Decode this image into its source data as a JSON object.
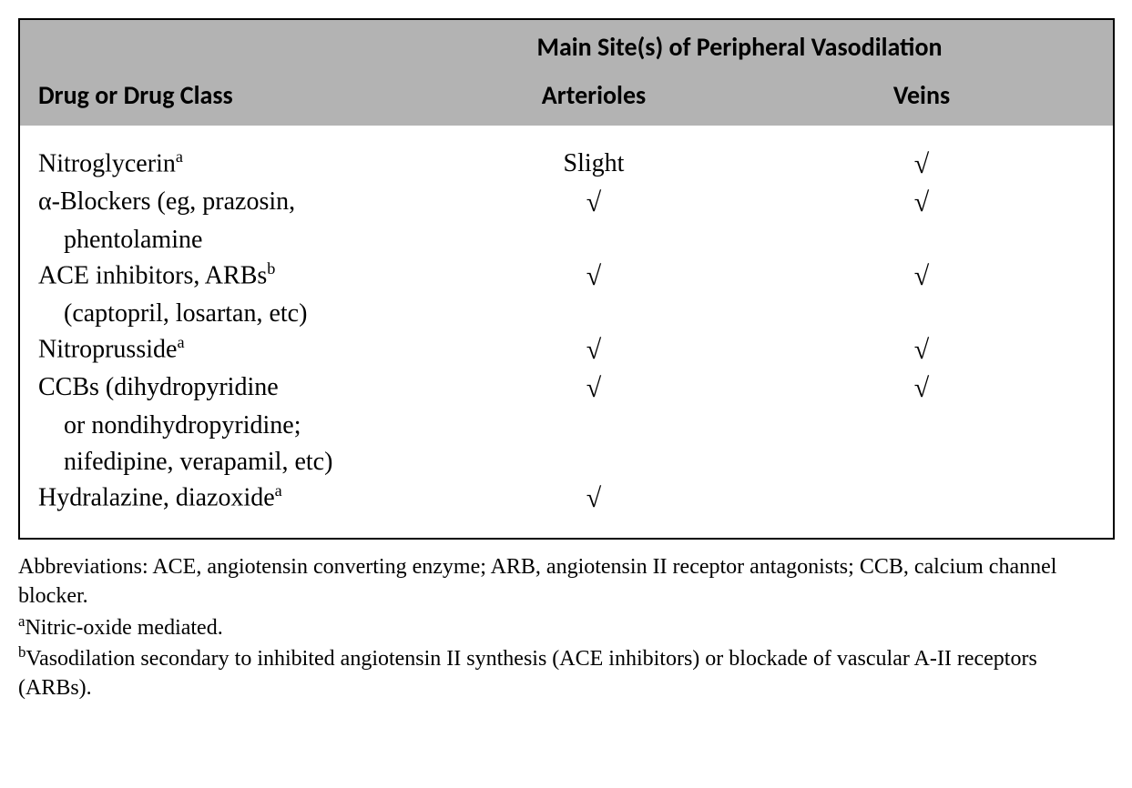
{
  "header": {
    "spanning": "Main Site(s) of Peripheral Vasodilation",
    "col1": "Drug or Drug Class",
    "col2": "Arterioles",
    "col3": "Veins"
  },
  "check_symbol": "√",
  "rows": [
    {
      "label_main": "Nitroglycerin",
      "label_sup": "a",
      "label_cont": [],
      "arterioles": "Slight",
      "veins": "√"
    },
    {
      "label_main_prefix": "α",
      "label_main_rest": "-Blockers (eg, prazosin,",
      "label_sup": "",
      "label_cont": [
        "phentolamine"
      ],
      "arterioles": "√",
      "veins": "√"
    },
    {
      "label_main": "ACE inhibitors, ARBs",
      "label_sup": "b",
      "label_cont": [
        "(captopril, losartan, etc)"
      ],
      "arterioles": "√",
      "veins": "√"
    },
    {
      "label_main": "Nitroprusside",
      "label_sup": "a",
      "label_cont": [],
      "arterioles": "√",
      "veins": "√"
    },
    {
      "label_main": "CCBs (dihydropyridine",
      "label_sup": "",
      "label_cont": [
        "or nondihydropyridine;",
        "nifedipine, verapamil, etc)"
      ],
      "arterioles": "√",
      "veins": "√"
    },
    {
      "label_main": "Hydralazine, diazoxide",
      "label_sup": "a",
      "label_cont": [],
      "arterioles": "√",
      "veins": ""
    }
  ],
  "footnotes": {
    "abbrev": "Abbreviations: ACE, angiotensin converting enzyme; ARB, angiotensin II receptor antagonists; CCB, calcium channel blocker.",
    "a_sup": "a",
    "a_text": "Nitric-oxide mediated.",
    "b_sup": "b",
    "b_text": "Vasodilation secondary to inhibited angiotensin II synthesis (ACE inhibitors) or blockade of vascular A-II receptors (ARBs)."
  },
  "colors": {
    "header_bg": "#b3b3b3",
    "body_bg": "#ffffff",
    "border": "#000000",
    "text": "#000000"
  },
  "typography": {
    "header_font": "Gill Sans / sans-serif",
    "body_font": "Georgia / serif",
    "header_size_pt": 21,
    "body_size_pt": 21,
    "footnote_size_pt": 18
  }
}
